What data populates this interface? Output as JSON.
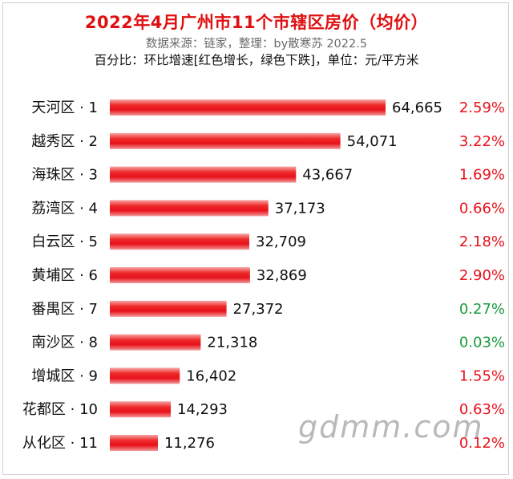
{
  "header": {
    "title": "2022年4月广州市11个市辖区房价（均价）",
    "subtitle": "数据来源：链家，整理：by散寒苏 2022.5",
    "note": "百分比：环比增速[红色增长，绿色下跌]，单位：元/平方米"
  },
  "watermark": "gdmm.com",
  "colors": {
    "bar": "#e8111b",
    "increase": "#e8111b",
    "decrease": "#1a9a3c"
  },
  "chart_data": {
    "type": "bar",
    "orientation": "horizontal",
    "title": "2022年4月广州市11个市辖区房价（均价）",
    "categories": [
      "天河区 · 1",
      "越秀区 · 2",
      "海珠区 · 3",
      "荔湾区 · 4",
      "白云区 · 5",
      "黄埔区 · 6",
      "番禺区 · 7",
      "南沙区 · 8",
      "增城区 · 9",
      "花都区 · 10",
      "从化区 · 11"
    ],
    "values": [
      64665,
      54071,
      43667,
      37173,
      32709,
      32869,
      27372,
      21318,
      16402,
      14293,
      11276
    ],
    "value_labels": [
      "64,665",
      "54,071",
      "43,667",
      "37,173",
      "32,709",
      "32,869",
      "27,372",
      "21,318",
      "16,402",
      "14,293",
      "11,276"
    ],
    "mom_change": [
      "2.59%",
      "3.22%",
      "1.69%",
      "0.66%",
      "2.18%",
      "2.90%",
      "0.27%",
      "0.03%",
      "1.55%",
      "0.63%",
      "0.12%"
    ],
    "mom_color": [
      "red",
      "red",
      "red",
      "red",
      "red",
      "red",
      "green",
      "green",
      "red",
      "red",
      "red"
    ],
    "xlim": [
      0,
      64665
    ]
  }
}
